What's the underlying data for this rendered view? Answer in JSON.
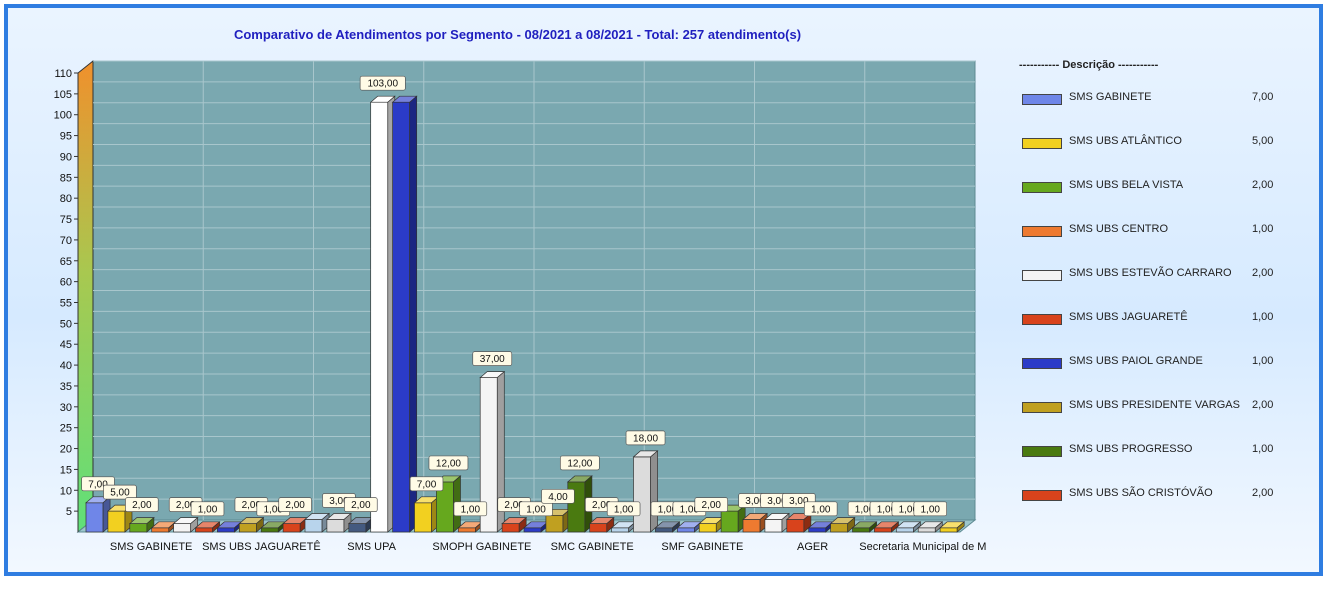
{
  "chart_data": {
    "type": "bar",
    "title": "Comparativo de Atendimentos por Segmento  - 08/2021 a 08/2021 - Total: 257 atendimento(s)",
    "ylim": [
      0,
      110
    ],
    "yticks": [
      5,
      10,
      15,
      20,
      25,
      30,
      35,
      40,
      45,
      50,
      55,
      60,
      65,
      70,
      75,
      80,
      85,
      90,
      95,
      100,
      105,
      110
    ],
    "x_tick_labels": [
      "SMS GABINETE",
      "SMS UBS JAGUARETÊ",
      "SMS UPA",
      "SMOPH GABINETE",
      "SMC GABINETE",
      "SMF GABINETE",
      "AGER",
      "Secretaria Municipal de M"
    ],
    "bars": [
      {
        "label": "7,00",
        "value": 7,
        "color": "#6f86e8"
      },
      {
        "label": "5,00",
        "value": 5,
        "color": "#f2d020"
      },
      {
        "label": "2,00",
        "value": 2,
        "color": "#66a81e"
      },
      {
        "label": "",
        "value": 1,
        "color": "#ee7a30"
      },
      {
        "label": "2,00",
        "value": 2,
        "color": "#f4f4f4"
      },
      {
        "label": "1,00",
        "value": 1,
        "color": "#d8431c"
      },
      {
        "label": "",
        "value": 1,
        "color": "#2b3bc8"
      },
      {
        "label": "2,00",
        "value": 2,
        "color": "#c0a020"
      },
      {
        "label": "1,00",
        "value": 1,
        "color": "#4a7a10"
      },
      {
        "label": "2,00",
        "value": 2,
        "color": "#d8431c"
      },
      {
        "label": "",
        "value": 3,
        "color": "#b8d4ec"
      },
      {
        "label": "3,00",
        "value": 3,
        "color": "#dcdcdc"
      },
      {
        "label": "2,00",
        "value": 2,
        "color": "#445a80"
      },
      {
        "label": "103,00",
        "value": 103,
        "color": "#ffffff"
      },
      {
        "label": "",
        "value": 103,
        "color": "#2b3bc8"
      },
      {
        "label": "7,00",
        "value": 7,
        "color": "#f2d020"
      },
      {
        "label": "12,00",
        "value": 12,
        "color": "#66a81e"
      },
      {
        "label": "1,00",
        "value": 1,
        "color": "#ee7a30"
      },
      {
        "label": "37,00",
        "value": 37,
        "color": "#f4f4f4"
      },
      {
        "label": "2,00",
        "value": 2,
        "color": "#d8431c"
      },
      {
        "label": "1,00",
        "value": 1,
        "color": "#2b3bc8"
      },
      {
        "label": "4,00",
        "value": 4,
        "color": "#c0a020"
      },
      {
        "label": "12,00",
        "value": 12,
        "color": "#4a7a10"
      },
      {
        "label": "2,00",
        "value": 2,
        "color": "#d8431c"
      },
      {
        "label": "1,00",
        "value": 1,
        "color": "#b8d4ec"
      },
      {
        "label": "18,00",
        "value": 18,
        "color": "#dcdcdc"
      },
      {
        "label": "1,00",
        "value": 1,
        "color": "#445a80"
      },
      {
        "label": "1,00",
        "value": 1,
        "color": "#6f86e8"
      },
      {
        "label": "2,00",
        "value": 2,
        "color": "#f2d020"
      },
      {
        "label": "",
        "value": 5,
        "color": "#66a81e"
      },
      {
        "label": "3,00",
        "value": 3,
        "color": "#ee7a30"
      },
      {
        "label": "3,00",
        "value": 3,
        "color": "#f4f4f4"
      },
      {
        "label": "3,00",
        "value": 3,
        "color": "#d8431c"
      },
      {
        "label": "1,00",
        "value": 1,
        "color": "#2b3bc8"
      },
      {
        "label": "",
        "value": 2,
        "color": "#c0a020"
      },
      {
        "label": "1,00",
        "value": 1,
        "color": "#4a7a10"
      },
      {
        "label": "1,00",
        "value": 1,
        "color": "#d8431c"
      },
      {
        "label": "1,00",
        "value": 1,
        "color": "#b8d4ec"
      },
      {
        "label": "1,00",
        "value": 1,
        "color": "#dcdcdc"
      },
      {
        "label": "",
        "value": 1,
        "color": "#f2d020"
      }
    ],
    "legend": {
      "title": "----------- Descrição -----------",
      "placement": "right",
      "items": [
        {
          "name": "SMS GABINETE",
          "value": "7,00",
          "color": "#6f86e8"
        },
        {
          "name": "SMS UBS ATLÂNTICO",
          "value": "5,00",
          "color": "#f2d020"
        },
        {
          "name": "SMS UBS BELA VISTA",
          "value": "2,00",
          "color": "#66a81e"
        },
        {
          "name": "SMS UBS CENTRO",
          "value": "1,00",
          "color": "#ee7a30"
        },
        {
          "name": "SMS UBS ESTEVÃO CARRARO",
          "value": "2,00",
          "color": "#f4f4f4"
        },
        {
          "name": "SMS UBS JAGUARETÊ",
          "value": "1,00",
          "color": "#d8431c"
        },
        {
          "name": "SMS UBS PAIOL GRANDE",
          "value": "1,00",
          "color": "#2b3bc8"
        },
        {
          "name": "SMS UBS PRESIDENTE VARGAS",
          "value": "2,00",
          "color": "#c0a020"
        },
        {
          "name": "SMS UBS PROGRESSO",
          "value": "1,00",
          "color": "#4a7a10"
        },
        {
          "name": "SMS UBS SÃO CRISTÓVÃO",
          "value": "2,00",
          "color": "#d8431c"
        }
      ]
    },
    "grid": true
  }
}
